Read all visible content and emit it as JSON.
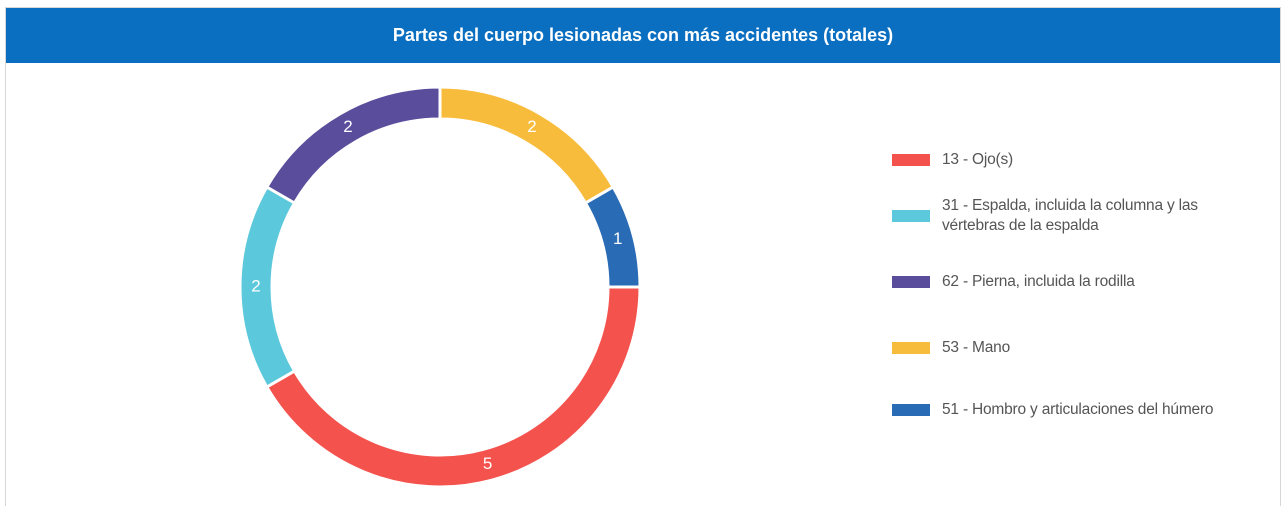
{
  "chart_data": {
    "type": "donut",
    "title": "Partes del cuerpo lesionadas con más accidentes (totales)",
    "categories": [
      "13 - Ojo(s)",
      "31 - Espalda, incluida la columna y las vértebras de la espalda",
      "62 - Pierna, incluida la rodilla",
      "53 - Mano",
      "51 - Hombro y articulaciones del húmero"
    ],
    "values": [
      5,
      2,
      2,
      2,
      1
    ],
    "colors": [
      "#f4524d",
      "#5bc8dc",
      "#594d9c",
      "#f8bc3c",
      "#2a6bb5"
    ],
    "legend": "right"
  }
}
